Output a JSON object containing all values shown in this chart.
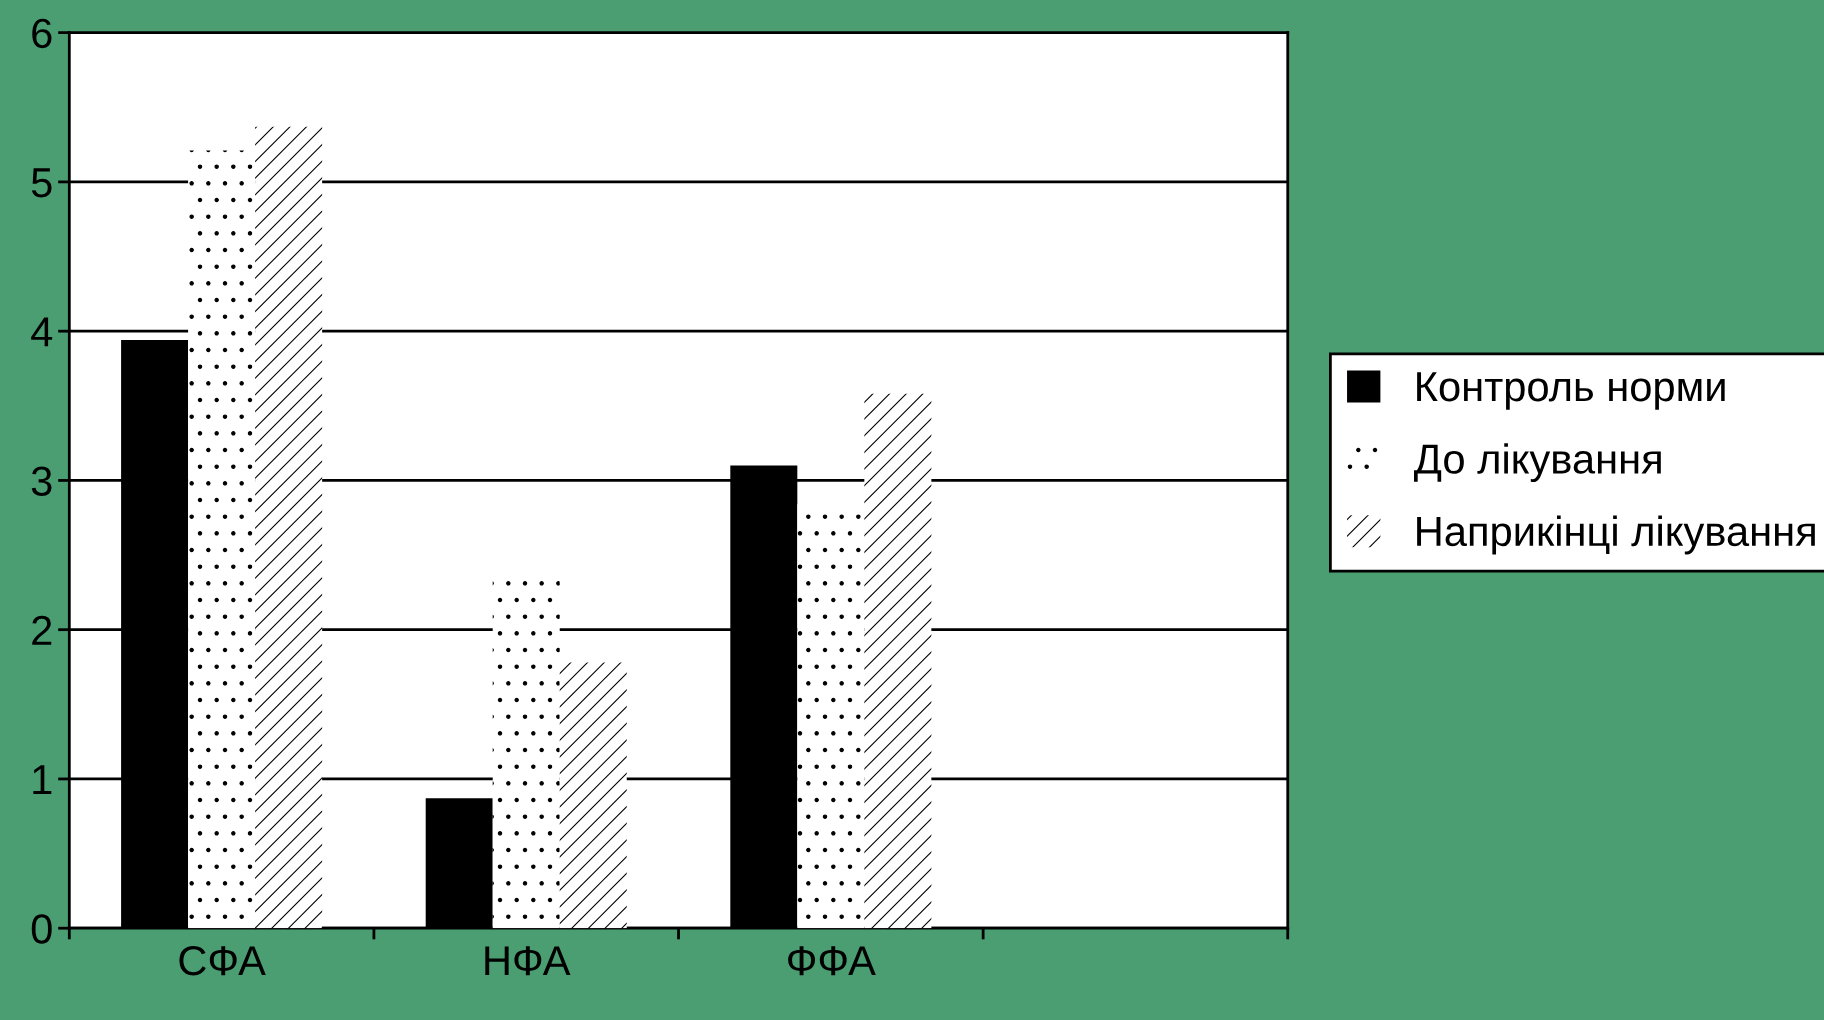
{
  "chart_data": {
    "type": "bar",
    "categories": [
      "СФА",
      "НФА",
      "ФФА",
      null
    ],
    "series": [
      {
        "name": "Контроль норми",
        "color": "#000000",
        "values": [
          3.94,
          0.87,
          3.1,
          null
        ]
      },
      {
        "name": "До лікування",
        "color": "#ffffff",
        "values": [
          5.21,
          2.36,
          2.84,
          null
        ]
      },
      {
        "name": "Наприкінці лікування",
        "color": "#ffffff",
        "values": [
          5.37,
          1.78,
          3.58,
          null
        ]
      }
    ],
    "ylim": [
      0,
      6
    ],
    "yticks": [
      0,
      1,
      2,
      3,
      4,
      5,
      6
    ],
    "grid": "y",
    "legend": "right"
  }
}
